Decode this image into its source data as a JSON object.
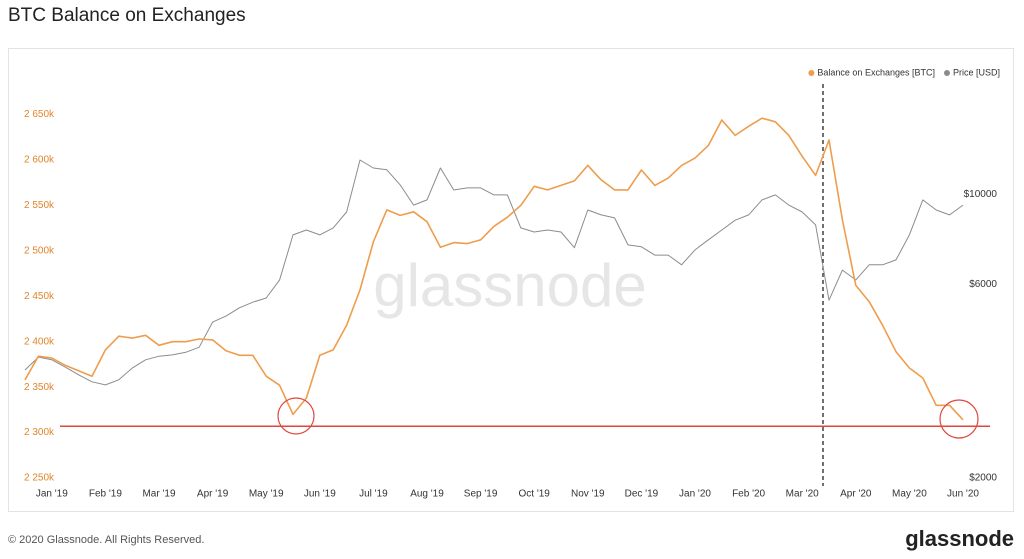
{
  "chart_data": {
    "type": "line",
    "title": "BTC Balance on Exchanges",
    "watermark": "glassnode",
    "footer": "© 2020 Glassnode. All Rights Reserved.",
    "logo": "glassnode",
    "legend": "top-right",
    "categories": [
      null,
      null,
      "Jan '19",
      null,
      null,
      null,
      "Feb '19",
      null,
      null,
      null,
      "Mar '19",
      null,
      null,
      null,
      "Apr '19",
      null,
      null,
      null,
      "May '19",
      null,
      null,
      null,
      "Jun '19",
      null,
      null,
      null,
      "Jul '19",
      null,
      null,
      null,
      "Aug '19",
      null,
      null,
      null,
      "Sep '19",
      null,
      null,
      null,
      "Oct '19",
      null,
      null,
      null,
      "Nov '19",
      null,
      null,
      null,
      "Dec '19",
      null,
      null,
      null,
      "Jan '20",
      null,
      null,
      null,
      "Feb '20",
      null,
      null,
      null,
      "Mar '20",
      null,
      null,
      null,
      "Apr '20",
      null,
      null,
      null,
      "May '20",
      null,
      null,
      null,
      "Jun '20"
    ],
    "series": [
      {
        "name": "Balance on Exchanges [BTC]",
        "color": "#ee9d4c",
        "axis": "y",
        "values": [
          2358000,
          2384000,
          2382000,
          2374000,
          2368000,
          2362000,
          2391000,
          2406000,
          2404000,
          2407000,
          2396000,
          2400000,
          2400000,
          2403000,
          2402000,
          2390000,
          2385000,
          2385000,
          2362000,
          2352000,
          2320000,
          2338000,
          2385000,
          2391000,
          2418000,
          2457000,
          2510000,
          2545000,
          2539000,
          2543000,
          2532000,
          2504000,
          2509000,
          2508000,
          2512000,
          2527000,
          2537000,
          2550000,
          2571000,
          2567000,
          2572000,
          2577000,
          2594000,
          2578000,
          2567000,
          2567000,
          2589000,
          2572000,
          2580000,
          2594000,
          2602000,
          2616000,
          2644000,
          2627000,
          2637000,
          2646000,
          2642000,
          2627000,
          2604000,
          2583000,
          2622000,
          2534000,
          2462000,
          2444000,
          2418000,
          2389000,
          2371000,
          2360000,
          2330000,
          2330000,
          2314000
        ]
      },
      {
        "name": "Price [USD]",
        "color": "#8c8c8c",
        "axis": "y2",
        "values": [
          3690,
          3970,
          3910,
          3750,
          3590,
          3450,
          3390,
          3490,
          3730,
          3910,
          3990,
          4020,
          4080,
          4200,
          4840,
          5010,
          5250,
          5420,
          5550,
          6150,
          7940,
          8160,
          7940,
          8260,
          9040,
          12140,
          11600,
          11480,
          10540,
          9400,
          9680,
          11600,
          10240,
          10360,
          10360,
          9960,
          9960,
          8260,
          8070,
          8160,
          8070,
          7380,
          9140,
          8890,
          8740,
          7500,
          7420,
          7080,
          7080,
          6700,
          7290,
          7720,
          8160,
          8630,
          8890,
          9680,
          9960,
          9400,
          9040,
          8400,
          5480,
          6500,
          6150,
          6700,
          6700,
          6890,
          7940,
          9680,
          9140,
          8890,
          9400
        ]
      }
    ],
    "reference_line": 2307000,
    "reference_color": "#e0473c",
    "ylim": [
      2250000,
      2710000
    ],
    "yticks": [
      {
        "value": 2250000,
        "label": "2 250k"
      },
      {
        "value": 2300000,
        "label": "2 300k"
      },
      {
        "value": 2350000,
        "label": "2 350k"
      },
      {
        "value": 2400000,
        "label": "2 400k"
      },
      {
        "value": 2450000,
        "label": "2 450k"
      },
      {
        "value": 2500000,
        "label": "2 500k"
      },
      {
        "value": 2550000,
        "label": "2 550k"
      },
      {
        "value": 2600000,
        "label": "2 600k"
      },
      {
        "value": 2650000,
        "label": "2 650k"
      }
    ],
    "y2lim": [
      2000,
      21400
    ],
    "y2_scale": "log",
    "y2ticks": [
      {
        "value": 2000,
        "label": "$2000"
      },
      {
        "value": 6000,
        "label": "$6000"
      },
      {
        "value": 10000,
        "label": "$10000"
      }
    ],
    "grid": false
  }
}
